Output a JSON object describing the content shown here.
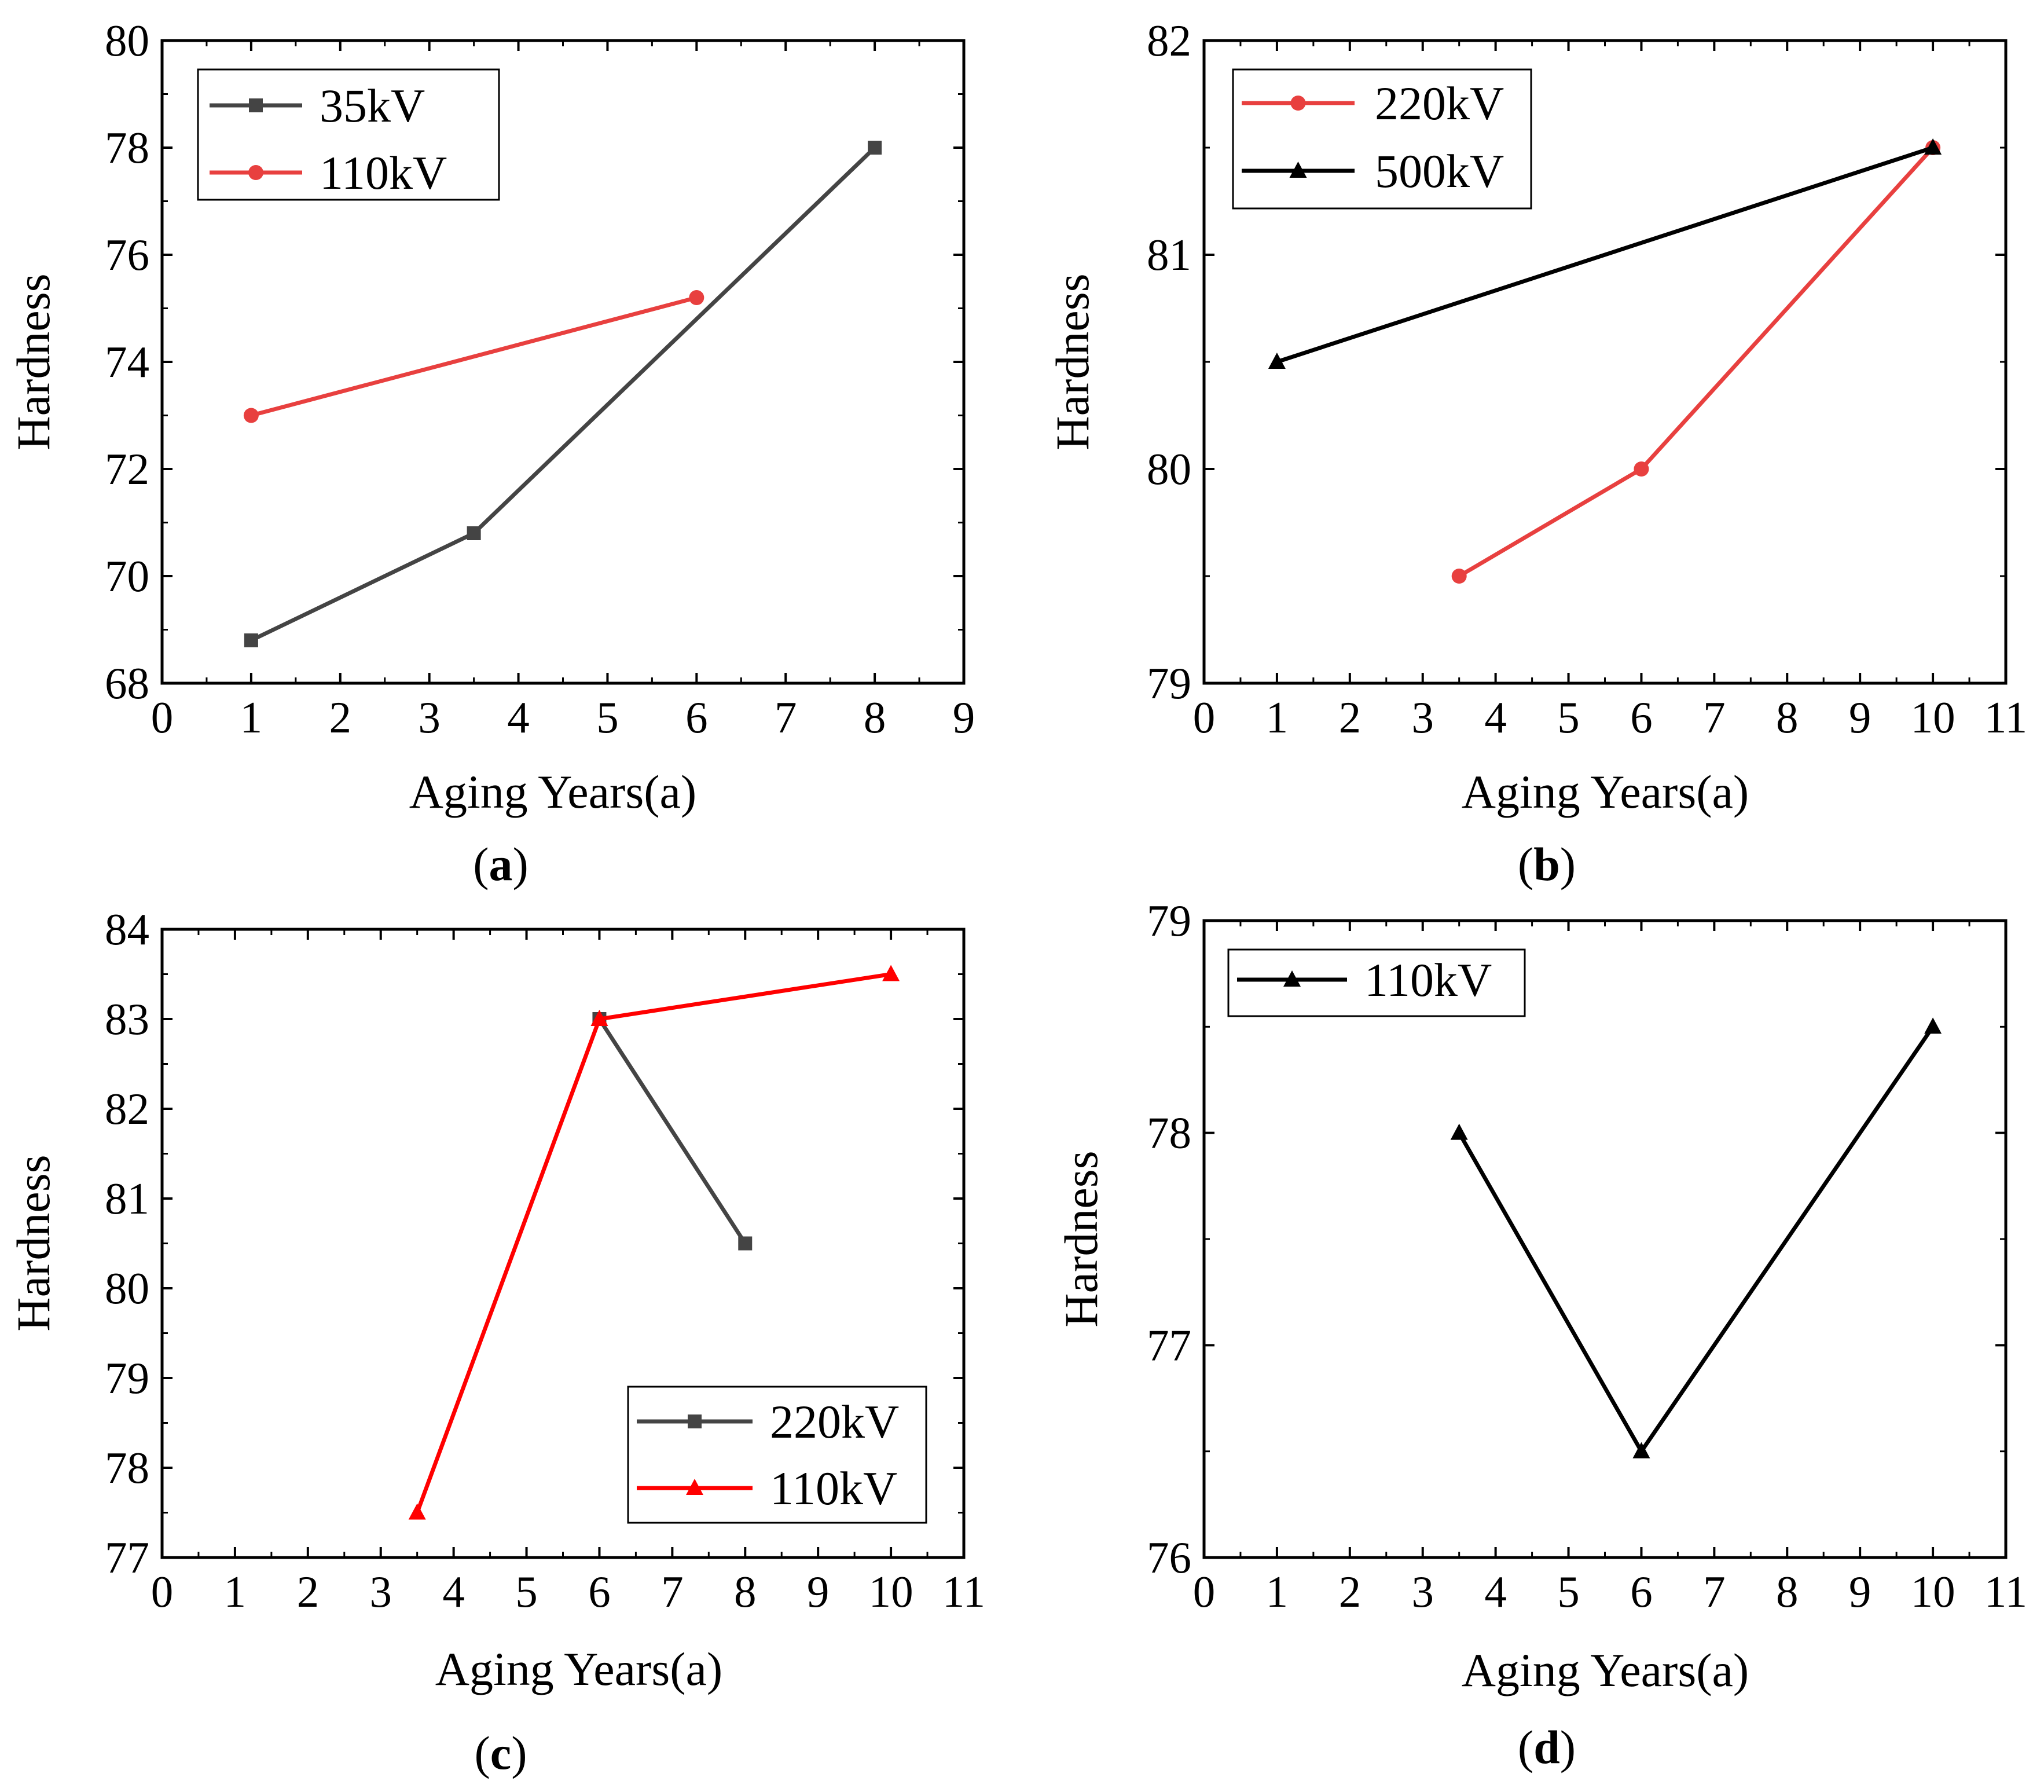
{
  "chart_data": [
    {
      "id": "a",
      "type": "line",
      "caption_letter": "a",
      "xlabel": "Aging Years(a)",
      "ylabel": "Hardness",
      "xlim": [
        0,
        9
      ],
      "ylim": [
        68,
        80
      ],
      "xticks": [
        "0",
        "1",
        "2",
        "3",
        "4",
        "5",
        "6",
        "7",
        "8",
        "9"
      ],
      "yticks": [
        "68",
        "70",
        "72",
        "74",
        "76",
        "78",
        "80"
      ],
      "legend_position": "top-left",
      "series": [
        {
          "name": "35kV",
          "color": "#444444",
          "marker": "square",
          "x": [
            1,
            3.5,
            8
          ],
          "y": [
            68.8,
            70.8,
            78
          ]
        },
        {
          "name": "110kV",
          "color": "#e8403f",
          "marker": "circle",
          "x": [
            1,
            6
          ],
          "y": [
            73,
            75.2
          ]
        }
      ]
    },
    {
      "id": "b",
      "type": "line",
      "caption_letter": "b",
      "xlabel": "Aging Years(a)",
      "ylabel": "Hardness",
      "xlim": [
        0,
        11
      ],
      "ylim": [
        79,
        82
      ],
      "xticks": [
        "0",
        "1",
        "2",
        "3",
        "4",
        "5",
        "6",
        "7",
        "8",
        "9",
        "10",
        "11"
      ],
      "yticks": [
        "79",
        "80",
        "81",
        "82"
      ],
      "legend_position": "top-left",
      "series": [
        {
          "name": "220kV",
          "color": "#e8403f",
          "marker": "circle",
          "x": [
            3.5,
            6,
            10
          ],
          "y": [
            79.5,
            80,
            81.5
          ]
        },
        {
          "name": "500kV",
          "color": "#000000",
          "marker": "triangle",
          "x": [
            1,
            10
          ],
          "y": [
            80.5,
            81.5
          ]
        }
      ]
    },
    {
      "id": "c",
      "type": "line",
      "caption_letter": "c",
      "xlabel": "Aging Years(a)",
      "ylabel": "Hardness",
      "xlim": [
        0,
        11
      ],
      "ylim": [
        77,
        84
      ],
      "xticks": [
        "0",
        "1",
        "2",
        "3",
        "4",
        "5",
        "6",
        "7",
        "8",
        "9",
        "10",
        "11"
      ],
      "yticks": [
        "77",
        "78",
        "79",
        "80",
        "81",
        "82",
        "83",
        "84"
      ],
      "legend_position": "bottom-right",
      "series": [
        {
          "name": "220kV",
          "color": "#444444",
          "marker": "square",
          "x": [
            6,
            8
          ],
          "y": [
            83,
            80.5
          ]
        },
        {
          "name": "110kV",
          "color": "#ff0000",
          "marker": "triangle",
          "x": [
            3.5,
            6,
            10
          ],
          "y": [
            77.5,
            83,
            83.5
          ]
        }
      ]
    },
    {
      "id": "d",
      "type": "line",
      "caption_letter": "d",
      "xlabel": "Aging Years(a)",
      "ylabel": "Hardness",
      "xlim": [
        0,
        11
      ],
      "ylim": [
        76,
        79
      ],
      "xticks": [
        "0",
        "1",
        "2",
        "3",
        "4",
        "5",
        "6",
        "7",
        "8",
        "9",
        "10",
        "11"
      ],
      "yticks": [
        "76",
        "77",
        "78",
        "79"
      ],
      "legend_position": "top-left",
      "series": [
        {
          "name": "110kV",
          "color": "#000000",
          "marker": "triangle",
          "x": [
            3.5,
            6,
            10
          ],
          "y": [
            78,
            76.5,
            78.5
          ]
        }
      ]
    }
  ]
}
